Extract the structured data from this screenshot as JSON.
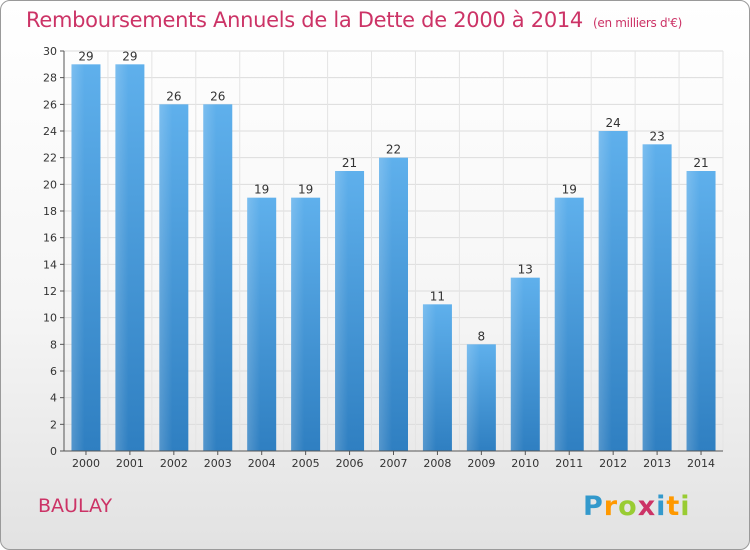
{
  "title": "Remboursements Annuels de la Dette de 2000 à 2014",
  "subtitle": "(en milliers d'€)",
  "place_label": "BAULAY",
  "logo": {
    "letters": [
      "P",
      "r",
      "o",
      "x",
      "i",
      "t",
      "i"
    ],
    "colors": [
      "#3399cc",
      "#ff9900",
      "#99cc33",
      "#cc3366",
      "#3399cc",
      "#ff9900",
      "#99cc33"
    ]
  },
  "colors": {
    "bar": "#4a9fe0",
    "title": "#cc3366"
  },
  "chart_data": {
    "type": "bar",
    "categories": [
      "2000",
      "2001",
      "2002",
      "2003",
      "2004",
      "2005",
      "2006",
      "2007",
      "2008",
      "2009",
      "2010",
      "2011",
      "2012",
      "2013",
      "2014"
    ],
    "values": [
      29,
      29,
      26,
      26,
      19,
      19,
      21,
      22,
      11,
      8,
      13,
      19,
      24,
      23,
      21
    ],
    "ylim": [
      0,
      30
    ],
    "yticks": [
      0,
      2,
      4,
      6,
      8,
      10,
      12,
      14,
      16,
      18,
      20,
      22,
      24,
      26,
      28,
      30
    ],
    "grid": true,
    "data_labels": true
  }
}
